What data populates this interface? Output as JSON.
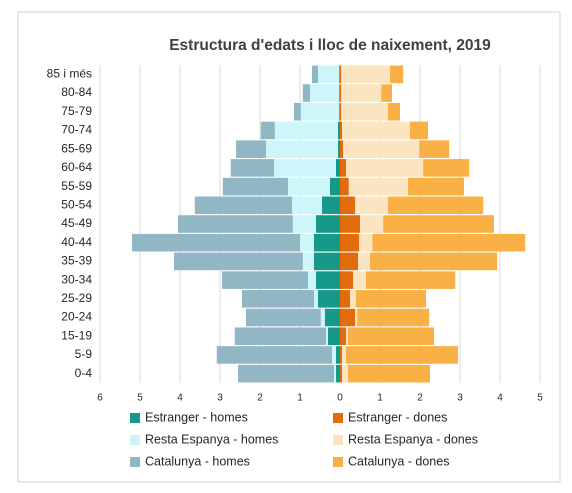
{
  "chart_data": {
    "type": "bar",
    "orientation": "horizontal",
    "stacked": true,
    "title": "Estructura d'edats i lloc de naixement, 2019",
    "categories": [
      "0-4",
      "5-9",
      "15-19",
      "20-24",
      "25-29",
      "30-34",
      "35-39",
      "40-44",
      "45-49",
      "50-54",
      "55-59",
      "60-64",
      "65-69",
      "70-74",
      "75-79",
      "80-84",
      "85 i més"
    ],
    "series": [
      {
        "name": "Estranger - homes",
        "color": "#17998a",
        "values": [
          -0.1,
          -0.1,
          -0.3,
          -0.38,
          -0.55,
          -0.6,
          -0.65,
          -0.65,
          -0.6,
          -0.45,
          -0.25,
          -0.1,
          -0.05,
          -0.05,
          -0.02,
          -0.02,
          -0.02
        ]
      },
      {
        "name": "Resta Espanya - homes",
        "color": "#cdf6fb",
        "values": [
          -0.05,
          -0.1,
          -0.05,
          -0.1,
          -0.1,
          -0.2,
          -0.28,
          -0.35,
          -0.58,
          -0.75,
          -1.05,
          -1.55,
          -1.8,
          -1.58,
          -0.96,
          -0.73,
          -0.53
        ]
      },
      {
        "name": "Catalunya - homes",
        "color": "#90b7c3",
        "values": [
          -2.4,
          -2.88,
          -2.28,
          -1.87,
          -1.8,
          -2.15,
          -3.22,
          -4.2,
          -2.87,
          -2.43,
          -1.63,
          -1.08,
          -0.75,
          -0.35,
          -0.17,
          -0.18,
          -0.15
        ]
      },
      {
        "name": "Estranger - dones",
        "color": "#e36c0a",
        "values": [
          0.05,
          0.05,
          0.15,
          0.38,
          0.25,
          0.33,
          0.45,
          0.48,
          0.5,
          0.38,
          0.22,
          0.15,
          0.08,
          0.05,
          0.03,
          0.03,
          0.03
        ]
      },
      {
        "name": "Resta Espanya - dones",
        "color": "#fbe4c0",
        "values": [
          0.15,
          0.1,
          0.05,
          0.05,
          0.15,
          0.32,
          0.3,
          0.33,
          0.58,
          0.82,
          1.48,
          1.93,
          1.9,
          1.7,
          1.17,
          1.0,
          1.22
        ]
      },
      {
        "name": "Catalunya - dones",
        "color": "#f9b145",
        "values": [
          2.05,
          2.8,
          2.15,
          1.8,
          1.75,
          2.23,
          3.18,
          3.82,
          2.77,
          2.38,
          1.4,
          1.15,
          0.75,
          0.45,
          0.3,
          0.27,
          0.33
        ]
      }
    ],
    "xlim": [
      -6,
      5.4
    ],
    "xticks": [
      {
        "value": -6,
        "label": "6"
      },
      {
        "value": -5,
        "label": "5"
      },
      {
        "value": -4,
        "label": "4"
      },
      {
        "value": -3,
        "label": "3"
      },
      {
        "value": -2,
        "label": "2"
      },
      {
        "value": -1,
        "label": "1"
      },
      0,
      1,
      2,
      3,
      4,
      5
    ],
    "grid": true,
    "legend": "bottom"
  }
}
